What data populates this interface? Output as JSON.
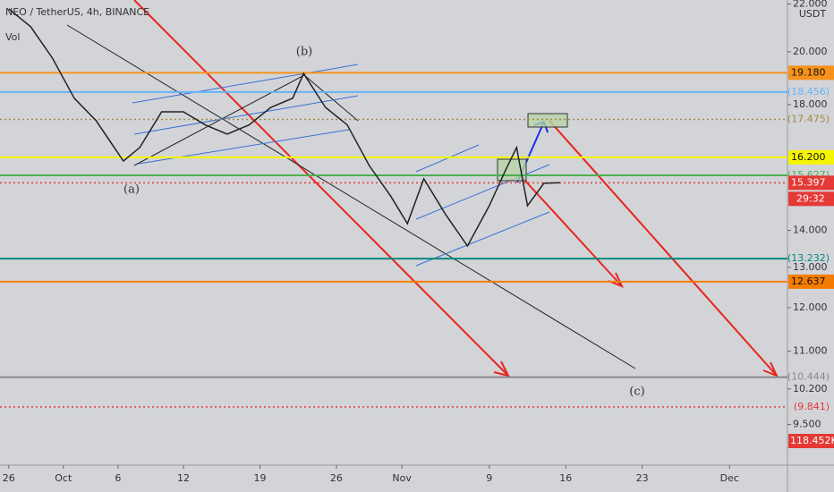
{
  "chart_data": {
    "type": "line",
    "title": "NEO / TetherUS, 4h, BINANCE",
    "volume_label": "Vol",
    "unit": "USDT",
    "log": true,
    "ylim": [
      8.76,
      22.18
    ],
    "xlim": [
      -0.8,
      71.3
    ],
    "yticks": [
      {
        "value": 22,
        "label": "22.000"
      },
      {
        "value": 20,
        "label": "20.000"
      },
      {
        "value": 18,
        "label": "18.000"
      },
      {
        "value": 14,
        "label": "14.000"
      },
      {
        "value": 13,
        "label": "13.000"
      },
      {
        "value": 12,
        "label": "12.000"
      },
      {
        "value": 11,
        "label": "11.000"
      },
      {
        "value": 10.2,
        "label": "10.200"
      },
      {
        "value": 9.5,
        "label": "9.500"
      }
    ],
    "xticks": [
      {
        "value": 0,
        "label": "26"
      },
      {
        "value": 5,
        "label": "Oct"
      },
      {
        "value": 10,
        "label": "6"
      },
      {
        "value": 16,
        "label": "12"
      },
      {
        "value": 23,
        "label": "19"
      },
      {
        "value": 30,
        "label": "26"
      },
      {
        "value": 36,
        "label": "Nov"
      },
      {
        "value": 44,
        "label": "9"
      },
      {
        "value": 51,
        "label": "16"
      },
      {
        "value": 58,
        "label": "23"
      },
      {
        "value": 66,
        "label": "Dec"
      }
    ],
    "x": [
      0,
      2,
      4,
      6,
      8,
      10.5,
      12,
      14,
      16,
      18,
      20,
      22,
      24,
      26,
      27,
      29,
      31,
      33,
      35,
      36.5,
      38,
      40,
      42,
      44,
      45.5,
      46.5,
      47.5,
      49,
      50.5
    ],
    "series": [
      {
        "color": "#222222",
        "values": [
          21.79,
          21.03,
          19.75,
          18.23,
          17.43,
          16.08,
          16.52,
          17.74,
          17.74,
          17.28,
          16.97,
          17.28,
          17.9,
          18.23,
          19.15,
          17.9,
          17.28,
          15.94,
          14.98,
          14.19,
          15.52,
          14.45,
          13.57,
          14.71,
          15.8,
          16.52,
          14.71,
          15.38,
          15.397
        ]
      }
    ],
    "levels": [
      {
        "value": 19.18,
        "label": "19.180",
        "color": "#f7931a",
        "boxed": true
      },
      {
        "value": 18.456,
        "label": "(18.456)",
        "color": "#64b5f6",
        "boxed": false
      },
      {
        "value": 17.475,
        "label": "(17.475)",
        "color": "#a08c3c",
        "boxed": false,
        "dotted": true
      },
      {
        "value": 16.2,
        "label": "16.200",
        "color": "#f5f500",
        "boxed": true
      },
      {
        "value": 15.627,
        "label": "(15.627)",
        "color": "#4caf50",
        "boxed": false
      },
      {
        "value": 15.397,
        "label": "15.397",
        "color": "#e53935",
        "boxed": true,
        "dotted": true
      },
      {
        "value": 13.232,
        "label": "(13.232)",
        "color": "#00897b",
        "boxed": false
      },
      {
        "value": 12.637,
        "label": "12.637",
        "color": "#f57c00",
        "boxed": true
      },
      {
        "value": 10.444,
        "label": "(10.444)",
        "color": "#888888",
        "boxed": false
      },
      {
        "value": 9.841,
        "label": "(9.841)",
        "color": "#e53935",
        "boxed": false,
        "dotted": true
      }
    ],
    "countdown": "29:32",
    "volume_value": "118.452K",
    "wave_labels": [
      "(a)",
      "(b)",
      "(c)"
    ]
  }
}
